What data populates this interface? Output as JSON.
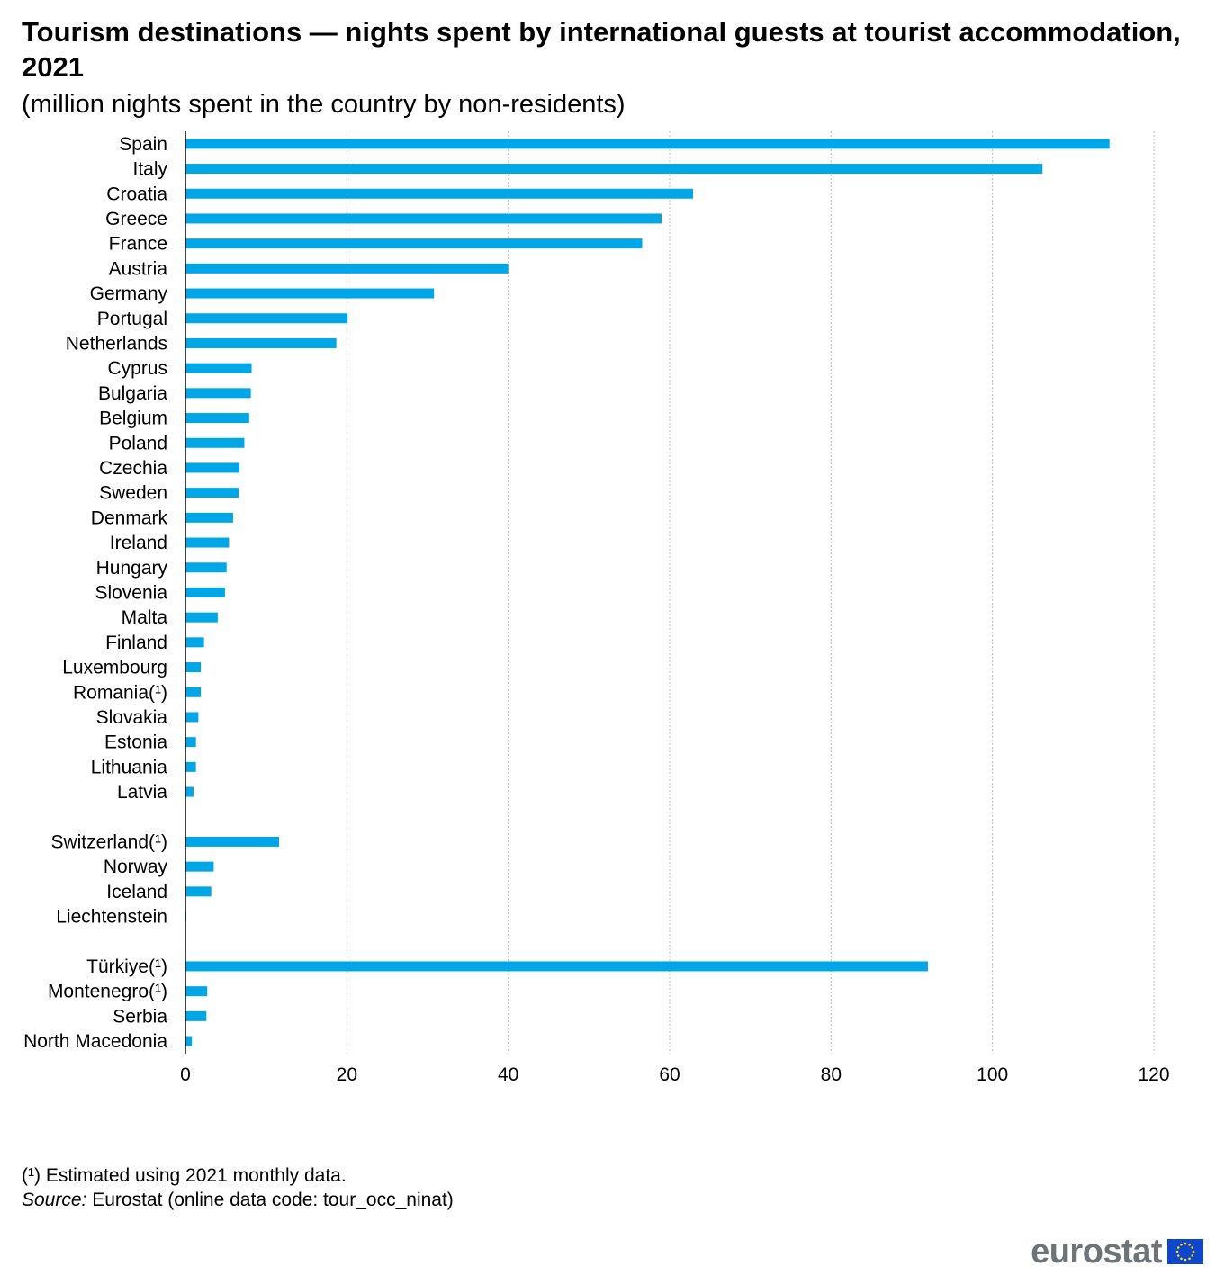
{
  "title": "Tourism destinations — nights spent by international guests at tourist accommodation, 2021",
  "subtitle": "(million nights spent in the country by non-residents)",
  "footnote": "(¹) Estimated using 2021 monthly data.",
  "source_label": "Source:",
  "source_text": " Eurostat (online data code: tour_occ_ninat)",
  "logo_text": "eurostat",
  "colors": {
    "bar": "#00a6e6",
    "grid": "#bfbfbf",
    "flag": "#0e47cb",
    "star": "#ffdd00"
  },
  "chart_data": {
    "type": "bar",
    "orientation": "horizontal",
    "title": "Tourism destinations — nights spent by international guests at tourist accommodation, 2021",
    "subtitle": "(million nights spent in the country by non-residents)",
    "xlim": [
      0,
      120
    ],
    "xticks": [
      0,
      20,
      40,
      60,
      80,
      100,
      120
    ],
    "grid": true,
    "categories": [
      "Spain",
      "Italy",
      "Croatia",
      "Greece",
      "France",
      "Austria",
      "Germany",
      "Portugal",
      "Netherlands",
      "Cyprus",
      "Bulgaria",
      "Belgium",
      "Poland",
      "Czechia",
      "Sweden",
      "Denmark",
      "Ireland",
      "Hungary",
      "Slovenia",
      "Malta",
      "Finland",
      "Luxembourg",
      "Romania(¹)",
      "Slovakia",
      "Estonia",
      "Lithuania",
      "Latvia",
      "",
      "Switzerland(¹)",
      "Norway",
      "Iceland",
      "Liechtenstein",
      "",
      "Türkiye(¹)",
      "Montenegro(¹)",
      "Serbia",
      "North Macedonia"
    ],
    "values": [
      114.5,
      106.2,
      62.9,
      59.0,
      56.6,
      40.0,
      30.8,
      20.1,
      18.7,
      8.2,
      8.1,
      7.9,
      7.3,
      6.7,
      6.6,
      5.9,
      5.4,
      5.1,
      4.9,
      4.0,
      2.3,
      1.9,
      1.9,
      1.6,
      1.3,
      1.3,
      1.0,
      null,
      11.6,
      3.5,
      3.2,
      0.1,
      null,
      92.0,
      2.7,
      2.6,
      0.8
    ]
  }
}
